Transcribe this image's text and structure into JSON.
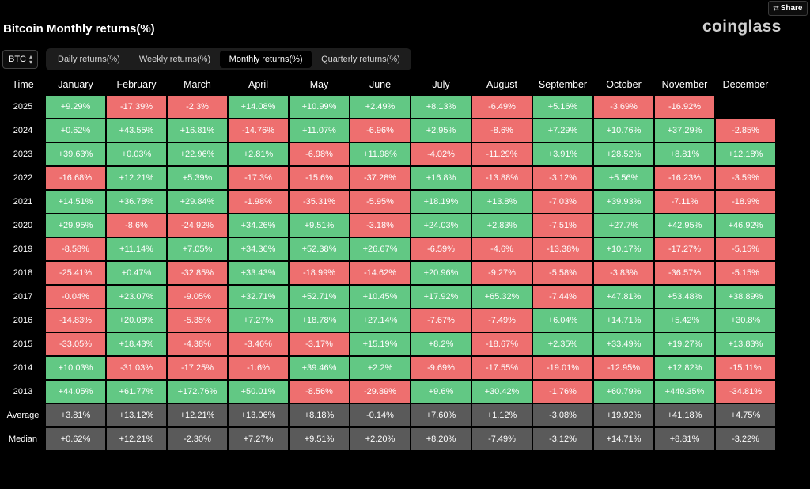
{
  "header": {
    "share_label": "Share",
    "share_icon": "share-icon",
    "brand": "coinglass",
    "title": "Bitcoin Monthly returns(%)"
  },
  "controls": {
    "coin": "BTC",
    "tabs": [
      {
        "label": "Daily returns(%)",
        "active": false
      },
      {
        "label": "Weekly returns(%)",
        "active": false
      },
      {
        "label": "Monthly returns(%)",
        "active": true
      },
      {
        "label": "Quarterly returns(%)",
        "active": false
      }
    ]
  },
  "colors": {
    "positive": "#62c884",
    "negative": "#ee6f6f",
    "stat": "#5a5a5a"
  },
  "table": {
    "headers": [
      "Time",
      "January",
      "February",
      "March",
      "April",
      "May",
      "June",
      "July",
      "August",
      "September",
      "October",
      "November",
      "December"
    ],
    "rows": [
      {
        "year": "2025",
        "values": [
          "+9.29%",
          "-17.39%",
          "-2.3%",
          "+14.08%",
          "+10.99%",
          "+2.49%",
          "+8.13%",
          "-6.49%",
          "+5.16%",
          "-3.69%",
          "-16.92%",
          ""
        ]
      },
      {
        "year": "2024",
        "values": [
          "+0.62%",
          "+43.55%",
          "+16.81%",
          "-14.76%",
          "+11.07%",
          "-6.96%",
          "+2.95%",
          "-8.6%",
          "+7.29%",
          "+10.76%",
          "+37.29%",
          "-2.85%"
        ]
      },
      {
        "year": "2023",
        "values": [
          "+39.63%",
          "+0.03%",
          "+22.96%",
          "+2.81%",
          "-6.98%",
          "+11.98%",
          "-4.02%",
          "-11.29%",
          "+3.91%",
          "+28.52%",
          "+8.81%",
          "+12.18%"
        ]
      },
      {
        "year": "2022",
        "values": [
          "-16.68%",
          "+12.21%",
          "+5.39%",
          "-17.3%",
          "-15.6%",
          "-37.28%",
          "+16.8%",
          "-13.88%",
          "-3.12%",
          "+5.56%",
          "-16.23%",
          "-3.59%"
        ]
      },
      {
        "year": "2021",
        "values": [
          "+14.51%",
          "+36.78%",
          "+29.84%",
          "-1.98%",
          "-35.31%",
          "-5.95%",
          "+18.19%",
          "+13.8%",
          "-7.03%",
          "+39.93%",
          "-7.11%",
          "-18.9%"
        ]
      },
      {
        "year": "2020",
        "values": [
          "+29.95%",
          "-8.6%",
          "-24.92%",
          "+34.26%",
          "+9.51%",
          "-3.18%",
          "+24.03%",
          "+2.83%",
          "-7.51%",
          "+27.7%",
          "+42.95%",
          "+46.92%"
        ]
      },
      {
        "year": "2019",
        "values": [
          "-8.58%",
          "+11.14%",
          "+7.05%",
          "+34.36%",
          "+52.38%",
          "+26.67%",
          "-6.59%",
          "-4.6%",
          "-13.38%",
          "+10.17%",
          "-17.27%",
          "-5.15%"
        ]
      },
      {
        "year": "2018",
        "values": [
          "-25.41%",
          "+0.47%",
          "-32.85%",
          "+33.43%",
          "-18.99%",
          "-14.62%",
          "+20.96%",
          "-9.27%",
          "-5.58%",
          "-3.83%",
          "-36.57%",
          "-5.15%"
        ]
      },
      {
        "year": "2017",
        "values": [
          "-0.04%",
          "+23.07%",
          "-9.05%",
          "+32.71%",
          "+52.71%",
          "+10.45%",
          "+17.92%",
          "+65.32%",
          "-7.44%",
          "+47.81%",
          "+53.48%",
          "+38.89%"
        ]
      },
      {
        "year": "2016",
        "values": [
          "-14.83%",
          "+20.08%",
          "-5.35%",
          "+7.27%",
          "+18.78%",
          "+27.14%",
          "-7.67%",
          "-7.49%",
          "+6.04%",
          "+14.71%",
          "+5.42%",
          "+30.8%"
        ]
      },
      {
        "year": "2015",
        "values": [
          "-33.05%",
          "+18.43%",
          "-4.38%",
          "-3.46%",
          "-3.17%",
          "+15.19%",
          "+8.2%",
          "-18.67%",
          "+2.35%",
          "+33.49%",
          "+19.27%",
          "+13.83%"
        ]
      },
      {
        "year": "2014",
        "values": [
          "+10.03%",
          "-31.03%",
          "-17.25%",
          "-1.6%",
          "+39.46%",
          "+2.2%",
          "-9.69%",
          "-17.55%",
          "-19.01%",
          "-12.95%",
          "+12.82%",
          "-15.11%"
        ]
      },
      {
        "year": "2013",
        "values": [
          "+44.05%",
          "+61.77%",
          "+172.76%",
          "+50.01%",
          "-8.56%",
          "-29.89%",
          "+9.6%",
          "+30.42%",
          "-1.76%",
          "+60.79%",
          "+449.35%",
          "-34.81%"
        ]
      }
    ],
    "summary": [
      {
        "label": "Average",
        "values": [
          "+3.81%",
          "+13.12%",
          "+12.21%",
          "+13.06%",
          "+8.18%",
          "-0.14%",
          "+7.60%",
          "+1.12%",
          "-3.08%",
          "+19.92%",
          "+41.18%",
          "+4.75%"
        ]
      },
      {
        "label": "Median",
        "values": [
          "+0.62%",
          "+12.21%",
          "-2.30%",
          "+7.27%",
          "+9.51%",
          "+2.20%",
          "+8.20%",
          "-7.49%",
          "-3.12%",
          "+14.71%",
          "+8.81%",
          "-3.22%"
        ]
      }
    ]
  }
}
